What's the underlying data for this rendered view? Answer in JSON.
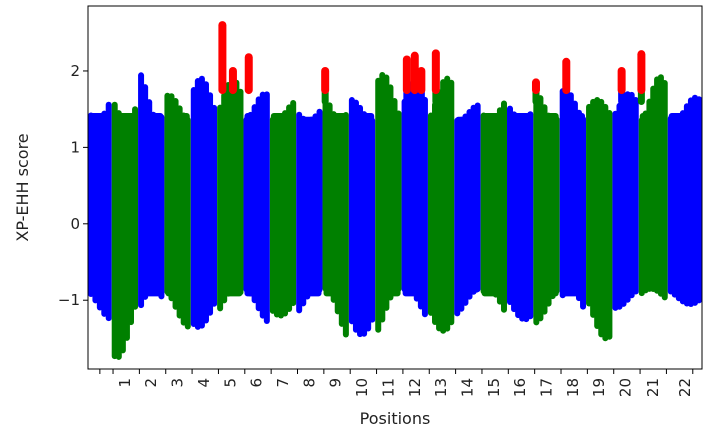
{
  "chart_data": {
    "type": "scatter",
    "title": "",
    "xlabel": "Positions",
    "ylabel": "XP-EHH score",
    "yticks": [
      -1,
      0,
      1,
      2
    ],
    "ytick_labels": [
      "−1",
      "0",
      "1",
      "2"
    ],
    "ylim": [
      -1.9,
      2.85
    ],
    "grid": false,
    "legend": "none",
    "colors": {
      "odd_chromosome": "#0000ff",
      "even_chromosome": "#008000",
      "outlier": "#ff0000"
    },
    "outlier_threshold": 1.75,
    "x_start": -0.95,
    "x_end": 22.35,
    "tick_x": [
      -0.5,
      0,
      1,
      2,
      3,
      4,
      5,
      6,
      7,
      8,
      9,
      10,
      11,
      12,
      13,
      14,
      15,
      16,
      17,
      18,
      19,
      20,
      21,
      22
    ],
    "chromosomes": [
      {
        "label": "",
        "x_range": [
          -0.95,
          -0.05
        ],
        "y_min": -1.25,
        "y_max": 1.75,
        "spike_min": -1.25,
        "outliers": []
      },
      {
        "label": "1",
        "x_range": [
          -0.05,
          0.95
        ],
        "y_min": -1.75,
        "y_max": 1.72,
        "spike_min": -1.75,
        "outliers": []
      },
      {
        "label": "2",
        "x_range": [
          0.95,
          1.95
        ],
        "y_min": -1.35,
        "y_max": 2.0,
        "spike_min": -1.35,
        "outliers": []
      },
      {
        "label": "3",
        "x_range": [
          1.95,
          2.95
        ],
        "y_min": -1.35,
        "y_max": 1.68,
        "spike_min": -1.35,
        "outliers": []
      },
      {
        "label": "4",
        "x_range": [
          2.95,
          3.95
        ],
        "y_min": -1.35,
        "y_max": 1.9,
        "spike_min": -1.35,
        "outliers": []
      },
      {
        "label": "5",
        "x_range": [
          3.95,
          4.95
        ],
        "y_min": -1.3,
        "y_max": 1.88,
        "spike_min": -1.3,
        "outliers": [
          {
            "x": 4.15,
            "y": 2.6,
            "spike_min": 1.75
          },
          {
            "x": 4.55,
            "y": 2.0,
            "spike_min": 1.75
          }
        ]
      },
      {
        "label": "6",
        "x_range": [
          4.95,
          5.95
        ],
        "y_min": -1.3,
        "y_max": 1.7,
        "spike_min": -1.3,
        "outliers": [
          {
            "x": 5.15,
            "y": 2.18,
            "spike_min": 1.75
          }
        ]
      },
      {
        "label": "7",
        "x_range": [
          5.95,
          6.95
        ],
        "y_min": -1.2,
        "y_max": 1.6,
        "spike_min": -1.2,
        "outliers": []
      },
      {
        "label": "8",
        "x_range": [
          6.95,
          7.95
        ],
        "y_min": -1.25,
        "y_max": 1.55,
        "spike_min": -1.25,
        "outliers": []
      },
      {
        "label": "9",
        "x_range": [
          7.95,
          8.95
        ],
        "y_min": -1.55,
        "y_max": 1.75,
        "spike_min": -1.55,
        "outliers": [
          {
            "x": 8.05,
            "y": 2.0,
            "spike_min": 1.6
          }
        ]
      },
      {
        "label": "10",
        "x_range": [
          8.95,
          9.95
        ],
        "y_min": -1.45,
        "y_max": 1.62,
        "spike_min": -1.45,
        "outliers": []
      },
      {
        "label": "11",
        "x_range": [
          9.95,
          10.95
        ],
        "y_min": -1.5,
        "y_max": 1.95,
        "spike_min": -1.5,
        "outliers": []
      },
      {
        "label": "12",
        "x_range": [
          10.95,
          11.95
        ],
        "y_min": -1.3,
        "y_max": 1.85,
        "spike_min": -1.3,
        "outliers": [
          {
            "x": 11.15,
            "y": 2.15,
            "spike_min": 1.6
          },
          {
            "x": 11.45,
            "y": 2.2,
            "spike_min": 1.6
          },
          {
            "x": 11.7,
            "y": 2.0,
            "spike_min": 1.6
          }
        ]
      },
      {
        "label": "13",
        "x_range": [
          11.95,
          12.95
        ],
        "y_min": -1.4,
        "y_max": 1.9,
        "spike_min": -1.4,
        "outliers": [
          {
            "x": 12.25,
            "y": 2.23,
            "spike_min": 1.6
          }
        ]
      },
      {
        "label": "14",
        "x_range": [
          12.95,
          13.95
        ],
        "y_min": -1.2,
        "y_max": 1.55,
        "spike_min": -1.2,
        "outliers": []
      },
      {
        "label": "15",
        "x_range": [
          13.95,
          14.95
        ],
        "y_min": -1.3,
        "y_max": 1.65,
        "spike_min": -1.3,
        "outliers": []
      },
      {
        "label": "16",
        "x_range": [
          14.95,
          15.95
        ],
        "y_min": -1.25,
        "y_max": 1.6,
        "spike_min": -1.25,
        "outliers": []
      },
      {
        "label": "17",
        "x_range": [
          15.95,
          16.95
        ],
        "y_min": -1.3,
        "y_max": 1.75,
        "spike_min": -1.3,
        "outliers": [
          {
            "x": 16.05,
            "y": 1.85,
            "spike_min": 1.6
          }
        ]
      },
      {
        "label": "18",
        "x_range": [
          16.95,
          17.95
        ],
        "y_min": -1.35,
        "y_max": 1.75,
        "spike_min": -1.35,
        "outliers": [
          {
            "x": 17.2,
            "y": 2.12,
            "spike_min": 1.6
          }
        ]
      },
      {
        "label": "19",
        "x_range": [
          17.95,
          18.95
        ],
        "y_min": -1.5,
        "y_max": 1.62,
        "spike_min": -1.5,
        "outliers": []
      },
      {
        "label": "20",
        "x_range": [
          18.95,
          19.95
        ],
        "y_min": -1.1,
        "y_max": 1.7,
        "spike_min": -1.1,
        "outliers": [
          {
            "x": 19.3,
            "y": 2.0,
            "spike_min": 1.6
          }
        ]
      },
      {
        "label": "21",
        "x_range": [
          19.95,
          21.05
        ],
        "y_min": -1.05,
        "y_max": 1.92,
        "spike_min": -1.05,
        "outliers": [
          {
            "x": 20.05,
            "y": 2.22,
            "spike_min": 1.6
          }
        ]
      },
      {
        "label": "22",
        "x_range": [
          21.05,
          22.35
        ],
        "y_min": -1.05,
        "y_max": 1.65,
        "spike_min": -1.05,
        "outliers": []
      }
    ]
  }
}
